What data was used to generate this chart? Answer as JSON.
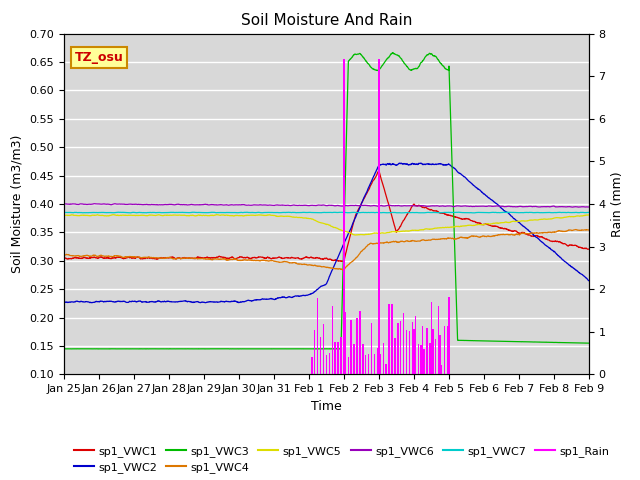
{
  "title": "Soil Moisture And Rain",
  "ylabel_left": "Soil Moisture (m3/m3)",
  "ylabel_right": "Rain (mm)",
  "xlabel": "Time",
  "ylim_left": [
    0.1,
    0.7
  ],
  "ylim_right": [
    0.0,
    8.0
  ],
  "yticks_left": [
    0.1,
    0.15,
    0.2,
    0.25,
    0.3,
    0.35,
    0.4,
    0.45,
    0.5,
    0.55,
    0.6,
    0.65,
    0.7
  ],
  "yticks_right": [
    0.0,
    1.0,
    2.0,
    3.0,
    4.0,
    5.0,
    6.0,
    7.0,
    8.0
  ],
  "background_color": "#d8d8d8",
  "annotation_text": "TZ_osu",
  "annotation_bg": "#ffff99",
  "annotation_border": "#cc8800",
  "colors": {
    "VWC1": "#dd0000",
    "VWC2": "#0000cc",
    "VWC3": "#00bb00",
    "VWC4": "#dd7700",
    "VWC5": "#dddd00",
    "VWC6": "#9900bb",
    "VWC7": "#00cccc",
    "Rain": "#ff00ff"
  },
  "day_labels": [
    "Jan 25",
    "Jan 26",
    "Jan 27",
    "Jan 28",
    "Jan 29",
    "Jan 30",
    "Jan 31",
    "Feb 1",
    "Feb 2",
    "Feb 3",
    "Feb 4",
    "Feb 5",
    "Feb 6",
    "Feb 7",
    "Feb 8",
    "Feb 9"
  ],
  "legend_row1": [
    "sp1_VWC1",
    "sp1_VWC2",
    "sp1_VWC3",
    "sp1_VWC4",
    "sp1_VWC5",
    "sp1_VWC6"
  ],
  "legend_row2": [
    "sp1_VWC7",
    "sp1_Rain"
  ]
}
